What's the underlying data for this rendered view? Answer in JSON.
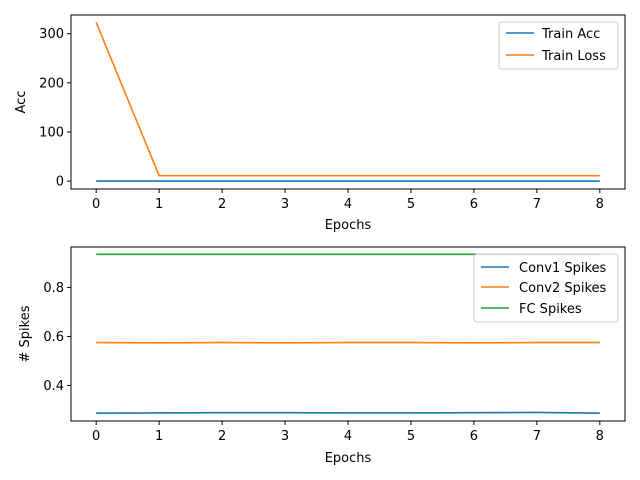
{
  "colors": {
    "blue": "#1f77b4",
    "orange": "#ff7f0e",
    "green": "#2ca02c"
  },
  "chart_data": [
    {
      "type": "line",
      "title": "",
      "xlabel": "Epochs",
      "ylabel": "Acc",
      "x": [
        0,
        1,
        2,
        3,
        4,
        5,
        6,
        7,
        8
      ],
      "xlim": [
        -0.4,
        8.4
      ],
      "ylim": [
        -16,
        338
      ],
      "xticks": [
        0,
        1,
        2,
        3,
        4,
        5,
        6,
        7,
        8
      ],
      "yticks": [
        0,
        100,
        200,
        300
      ],
      "grid": false,
      "legend": "top-right",
      "series": [
        {
          "name": "Train Acc",
          "color": "#1f77b4",
          "values": [
            0.1,
            0.1,
            0.1,
            0.1,
            0.1,
            0.1,
            0.1,
            0.1,
            0.1
          ]
        },
        {
          "name": "Train Loss",
          "color": "#ff7f0e",
          "values": [
            323,
            11,
            11,
            11,
            11,
            11,
            11,
            11,
            11
          ]
        }
      ]
    },
    {
      "type": "line",
      "title": "",
      "xlabel": "Epochs",
      "ylabel": "# Spikes",
      "x": [
        0,
        1,
        2,
        3,
        4,
        5,
        6,
        7,
        8
      ],
      "xlim": [
        -0.4,
        8.4
      ],
      "ylim": [
        0.255,
        0.965
      ],
      "xticks": [
        0,
        1,
        2,
        3,
        4,
        5,
        6,
        7,
        8
      ],
      "yticks": [
        0.4,
        0.6,
        0.8
      ],
      "grid": false,
      "legend": "top-right",
      "series": [
        {
          "name": "Conv1 Spikes",
          "color": "#1f77b4",
          "values": [
            0.287,
            0.288,
            0.289,
            0.289,
            0.288,
            0.288,
            0.289,
            0.29,
            0.287
          ]
        },
        {
          "name": "Conv2 Spikes",
          "color": "#ff7f0e",
          "values": [
            0.575,
            0.574,
            0.575,
            0.574,
            0.575,
            0.575,
            0.574,
            0.575,
            0.575
          ]
        },
        {
          "name": "FC Spikes",
          "color": "#2ca02c",
          "values": [
            0.935,
            0.935,
            0.935,
            0.935,
            0.935,
            0.935,
            0.935,
            0.935,
            0.935
          ]
        }
      ]
    }
  ]
}
